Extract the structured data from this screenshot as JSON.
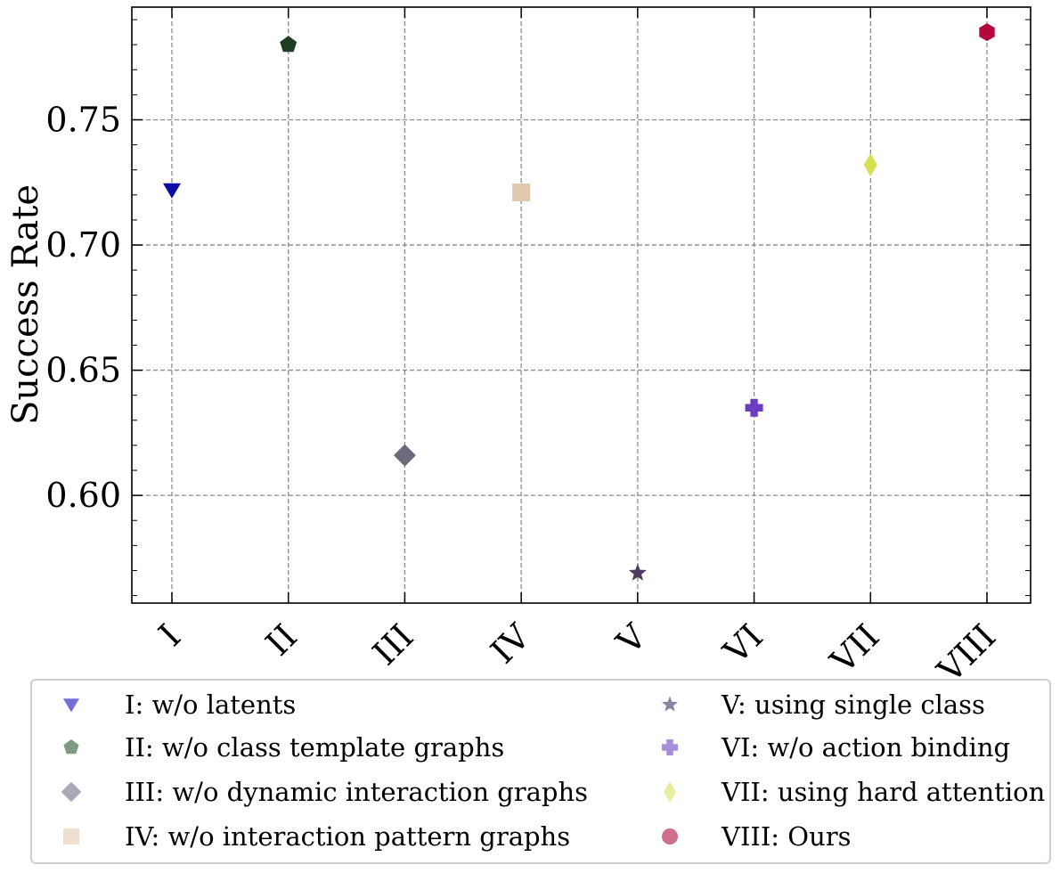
{
  "chart_data": {
    "type": "scatter",
    "title": "",
    "xlabel": "",
    "ylabel": "Success Rate",
    "categories": [
      "I",
      "II",
      "III",
      "IV",
      "V",
      "VI",
      "VII",
      "VIII"
    ],
    "ylim": [
      0.557,
      0.795
    ],
    "yticks": [
      0.6,
      0.65,
      0.7,
      0.75
    ],
    "ytick_labels": [
      "0.60",
      "0.65",
      "0.70",
      "0.75"
    ],
    "grid": true,
    "legend_position": "bottom",
    "series": [
      {
        "name": "I: w/o latents",
        "category": "I",
        "value": 0.722,
        "marker": "triangle-down",
        "color": "#0b0ba6",
        "legend_color": "#6f6fd6"
      },
      {
        "name": "II: w/o class template graphs",
        "category": "II",
        "value": 0.78,
        "marker": "pentagon",
        "color": "#1e3d22",
        "legend_color": "#7f9a83"
      },
      {
        "name": "III: w/o dynamic interaction graphs",
        "category": "III",
        "value": 0.616,
        "marker": "diamond",
        "color": "#6b6b7d",
        "legend_color": "#a8a8b6"
      },
      {
        "name": "IV: w/o interaction pattern graphs",
        "category": "IV",
        "value": 0.721,
        "marker": "square",
        "color": "#e2c9ad",
        "legend_color": "#efdfcf"
      },
      {
        "name": "V: using single class",
        "category": "V",
        "value": 0.569,
        "marker": "star",
        "color": "#4e3c60",
        "legend_color": "#8f82a0"
      },
      {
        "name": "VI: w/o action binding",
        "category": "VI",
        "value": 0.635,
        "marker": "plus",
        "color": "#6a3fbf",
        "legend_color": "#a690dc"
      },
      {
        "name": "VII: using hard attention",
        "category": "VII",
        "value": 0.732,
        "marker": "thin-diamond",
        "color": "#d6df4e",
        "legend_color": "#e7ee9c"
      },
      {
        "name": "VIII: Ours",
        "category": "VIII",
        "value": 0.785,
        "marker": "hexagon",
        "color": "#b5063e",
        "legend_color": "#cf6f8c"
      }
    ]
  }
}
